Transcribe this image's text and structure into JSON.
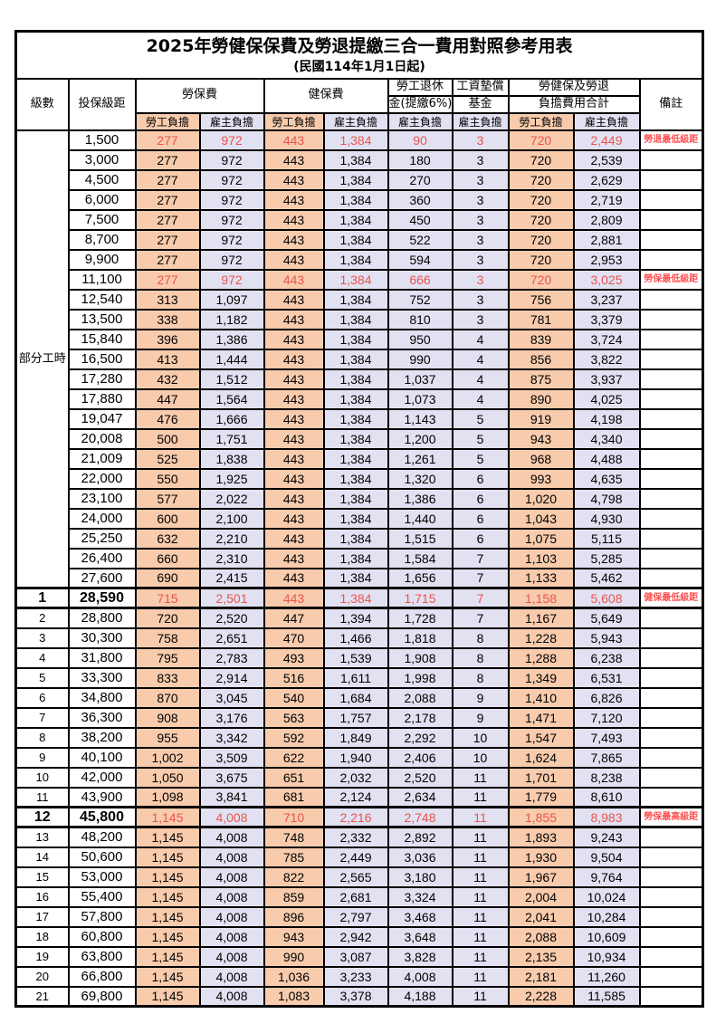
{
  "title": "2025年勞健保保費及勞退提繳三合一費用對照參考用表",
  "subtitle": "(民國114年1月1日起)",
  "colors": {
    "employee_column_bg": "#F8CBAD",
    "employer_column_bg": "#E2E1F2",
    "highlight_number_text": "#E8554E",
    "note_text": "#FF5252",
    "border": "#000000"
  },
  "header": {
    "level": "級數",
    "bracket": "投保級距",
    "labor_fee": "勞保費",
    "health_fee": "健保費",
    "pension_line1": "勞工退休",
    "pension_line2": "金(提繳6%)",
    "wage_fund_line1": "工資墊償",
    "wage_fund_line2": "基金",
    "total_line1": "勞健保及勞退",
    "total_line2": "負擔費用合計",
    "note": "備註",
    "employee": "勞工負擔",
    "employer": "雇主負擔"
  },
  "part_time": {
    "label": "部分工時",
    "rowspan": 23
  },
  "rows": [
    {
      "level": "",
      "bracket": "1,500",
      "values": [
        "277",
        "972",
        "443",
        "1,384",
        "90",
        "3",
        "720",
        "2,449"
      ],
      "highlight": true,
      "note": "勞退最低級距"
    },
    {
      "level": "",
      "bracket": "3,000",
      "values": [
        "277",
        "972",
        "443",
        "1,384",
        "180",
        "3",
        "720",
        "2,539"
      ]
    },
    {
      "level": "",
      "bracket": "4,500",
      "values": [
        "277",
        "972",
        "443",
        "1,384",
        "270",
        "3",
        "720",
        "2,629"
      ]
    },
    {
      "level": "",
      "bracket": "6,000",
      "values": [
        "277",
        "972",
        "443",
        "1,384",
        "360",
        "3",
        "720",
        "2,719"
      ]
    },
    {
      "level": "",
      "bracket": "7,500",
      "values": [
        "277",
        "972",
        "443",
        "1,384",
        "450",
        "3",
        "720",
        "2,809"
      ]
    },
    {
      "level": "",
      "bracket": "8,700",
      "values": [
        "277",
        "972",
        "443",
        "1,384",
        "522",
        "3",
        "720",
        "2,881"
      ]
    },
    {
      "level": "",
      "bracket": "9,900",
      "values": [
        "277",
        "972",
        "443",
        "1,384",
        "594",
        "3",
        "720",
        "2,953"
      ]
    },
    {
      "level": "",
      "bracket": "11,100",
      "values": [
        "277",
        "972",
        "443",
        "1,384",
        "666",
        "3",
        "720",
        "3,025"
      ],
      "highlight": true,
      "note": "勞保最低級距"
    },
    {
      "level": "",
      "bracket": "12,540",
      "values": [
        "313",
        "1,097",
        "443",
        "1,384",
        "752",
        "3",
        "756",
        "3,237"
      ]
    },
    {
      "level": "",
      "bracket": "13,500",
      "values": [
        "338",
        "1,182",
        "443",
        "1,384",
        "810",
        "3",
        "781",
        "3,379"
      ]
    },
    {
      "level": "",
      "bracket": "15,840",
      "values": [
        "396",
        "1,386",
        "443",
        "1,384",
        "950",
        "4",
        "839",
        "3,724"
      ]
    },
    {
      "level": "",
      "bracket": "16,500",
      "values": [
        "413",
        "1,444",
        "443",
        "1,384",
        "990",
        "4",
        "856",
        "3,822"
      ]
    },
    {
      "level": "",
      "bracket": "17,280",
      "values": [
        "432",
        "1,512",
        "443",
        "1,384",
        "1,037",
        "4",
        "875",
        "3,937"
      ]
    },
    {
      "level": "",
      "bracket": "17,880",
      "values": [
        "447",
        "1,564",
        "443",
        "1,384",
        "1,073",
        "4",
        "890",
        "4,025"
      ]
    },
    {
      "level": "",
      "bracket": "19,047",
      "values": [
        "476",
        "1,666",
        "443",
        "1,384",
        "1,143",
        "5",
        "919",
        "4,198"
      ]
    },
    {
      "level": "",
      "bracket": "20,008",
      "values": [
        "500",
        "1,751",
        "443",
        "1,384",
        "1,200",
        "5",
        "943",
        "4,340"
      ]
    },
    {
      "level": "",
      "bracket": "21,009",
      "values": [
        "525",
        "1,838",
        "443",
        "1,384",
        "1,261",
        "5",
        "968",
        "4,488"
      ]
    },
    {
      "level": "",
      "bracket": "22,000",
      "values": [
        "550",
        "1,925",
        "443",
        "1,384",
        "1,320",
        "6",
        "993",
        "4,635"
      ]
    },
    {
      "level": "",
      "bracket": "23,100",
      "values": [
        "577",
        "2,022",
        "443",
        "1,384",
        "1,386",
        "6",
        "1,020",
        "4,798"
      ]
    },
    {
      "level": "",
      "bracket": "24,000",
      "values": [
        "600",
        "2,100",
        "443",
        "1,384",
        "1,440",
        "6",
        "1,043",
        "4,930"
      ]
    },
    {
      "level": "",
      "bracket": "25,250",
      "values": [
        "632",
        "2,210",
        "443",
        "1,384",
        "1,515",
        "6",
        "1,075",
        "5,115"
      ]
    },
    {
      "level": "",
      "bracket": "26,400",
      "values": [
        "660",
        "2,310",
        "443",
        "1,384",
        "1,584",
        "7",
        "1,103",
        "5,285"
      ]
    },
    {
      "level": "",
      "bracket": "27,600",
      "values": [
        "690",
        "2,415",
        "443",
        "1,384",
        "1,656",
        "7",
        "1,133",
        "5,462"
      ]
    },
    {
      "level": "1",
      "bracket": "28,590",
      "values": [
        "715",
        "2,501",
        "443",
        "1,384",
        "1,715",
        "7",
        "1,158",
        "5,608"
      ],
      "highlight": true,
      "bold": true,
      "thick": true,
      "note": "健保最低級距"
    },
    {
      "level": "2",
      "bracket": "28,800",
      "values": [
        "720",
        "2,520",
        "447",
        "1,394",
        "1,728",
        "7",
        "1,167",
        "5,649"
      ]
    },
    {
      "level": "3",
      "bracket": "30,300",
      "values": [
        "758",
        "2,651",
        "470",
        "1,466",
        "1,818",
        "8",
        "1,228",
        "5,943"
      ]
    },
    {
      "level": "4",
      "bracket": "31,800",
      "values": [
        "795",
        "2,783",
        "493",
        "1,539",
        "1,908",
        "8",
        "1,288",
        "6,238"
      ]
    },
    {
      "level": "5",
      "bracket": "33,300",
      "values": [
        "833",
        "2,914",
        "516",
        "1,611",
        "1,998",
        "8",
        "1,349",
        "6,531"
      ]
    },
    {
      "level": "6",
      "bracket": "34,800",
      "values": [
        "870",
        "3,045",
        "540",
        "1,684",
        "2,088",
        "9",
        "1,410",
        "6,826"
      ]
    },
    {
      "level": "7",
      "bracket": "36,300",
      "values": [
        "908",
        "3,176",
        "563",
        "1,757",
        "2,178",
        "9",
        "1,471",
        "7,120"
      ]
    },
    {
      "level": "8",
      "bracket": "38,200",
      "values": [
        "955",
        "3,342",
        "592",
        "1,849",
        "2,292",
        "10",
        "1,547",
        "7,493"
      ]
    },
    {
      "level": "9",
      "bracket": "40,100",
      "values": [
        "1,002",
        "3,509",
        "622",
        "1,940",
        "2,406",
        "10",
        "1,624",
        "7,865"
      ]
    },
    {
      "level": "10",
      "bracket": "42,000",
      "values": [
        "1,050",
        "3,675",
        "651",
        "2,032",
        "2,520",
        "11",
        "1,701",
        "8,238"
      ]
    },
    {
      "level": "11",
      "bracket": "43,900",
      "values": [
        "1,098",
        "3,841",
        "681",
        "2,124",
        "2,634",
        "11",
        "1,779",
        "8,610"
      ]
    },
    {
      "level": "12",
      "bracket": "45,800",
      "values": [
        "1,145",
        "4,008",
        "710",
        "2,216",
        "2,748",
        "11",
        "1,855",
        "8,983"
      ],
      "highlight": true,
      "bold": true,
      "thick": true,
      "note": "勞保最高級距"
    },
    {
      "level": "13",
      "bracket": "48,200",
      "values": [
        "1,145",
        "4,008",
        "748",
        "2,332",
        "2,892",
        "11",
        "1,893",
        "9,243"
      ]
    },
    {
      "level": "14",
      "bracket": "50,600",
      "values": [
        "1,145",
        "4,008",
        "785",
        "2,449",
        "3,036",
        "11",
        "1,930",
        "9,504"
      ]
    },
    {
      "level": "15",
      "bracket": "53,000",
      "values": [
        "1,145",
        "4,008",
        "822",
        "2,565",
        "3,180",
        "11",
        "1,967",
        "9,764"
      ]
    },
    {
      "level": "16",
      "bracket": "55,400",
      "values": [
        "1,145",
        "4,008",
        "859",
        "2,681",
        "3,324",
        "11",
        "2,004",
        "10,024"
      ]
    },
    {
      "level": "17",
      "bracket": "57,800",
      "values": [
        "1,145",
        "4,008",
        "896",
        "2,797",
        "3,468",
        "11",
        "2,041",
        "10,284"
      ]
    },
    {
      "level": "18",
      "bracket": "60,800",
      "values": [
        "1,145",
        "4,008",
        "943",
        "2,942",
        "3,648",
        "11",
        "2,088",
        "10,609"
      ]
    },
    {
      "level": "19",
      "bracket": "63,800",
      "values": [
        "1,145",
        "4,008",
        "990",
        "3,087",
        "3,828",
        "11",
        "2,135",
        "10,934"
      ]
    },
    {
      "level": "20",
      "bracket": "66,800",
      "values": [
        "1,145",
        "4,008",
        "1,036",
        "3,233",
        "4,008",
        "11",
        "2,181",
        "11,260"
      ]
    },
    {
      "level": "21",
      "bracket": "69,800",
      "values": [
        "1,145",
        "4,008",
        "1,083",
        "3,378",
        "4,188",
        "11",
        "2,228",
        "11,585"
      ]
    }
  ]
}
